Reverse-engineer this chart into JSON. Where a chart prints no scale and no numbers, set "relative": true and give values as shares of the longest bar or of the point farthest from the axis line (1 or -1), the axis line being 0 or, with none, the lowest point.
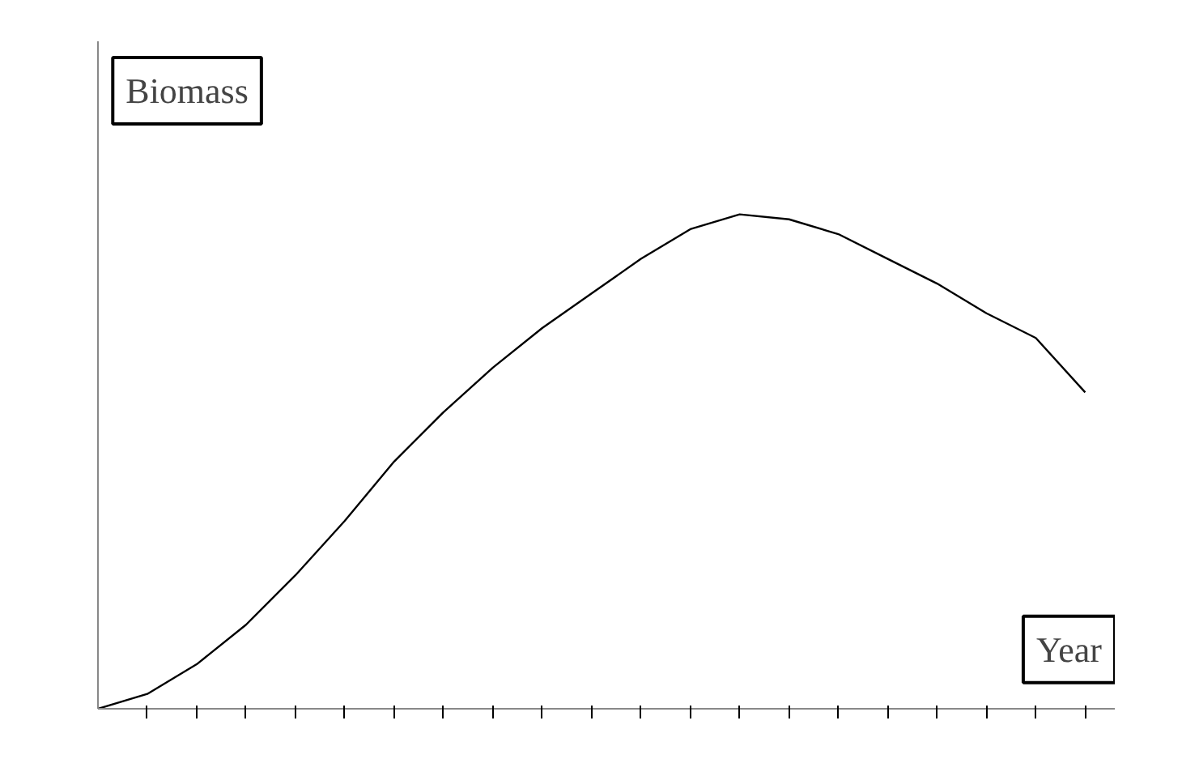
{
  "chart_data": {
    "type": "line",
    "relative": true,
    "xlabel": "Year",
    "ylabel": "Biomass",
    "categories": [
      null,
      null,
      null,
      null,
      null,
      null,
      null,
      null,
      null,
      null,
      null,
      null,
      null,
      null,
      null,
      null,
      null,
      null,
      null,
      null,
      null
    ],
    "series": [
      {
        "color": "#000000",
        "values": [
          0,
          0.03,
          0.09,
          0.17,
          0.27,
          0.38,
          0.5,
          0.6,
          0.69,
          0.77,
          0.84,
          0.91,
          0.97,
          1.0,
          0.99,
          0.96,
          0.91,
          0.86,
          0.8,
          0.75,
          0.64
        ]
      }
    ],
    "grid": false
  }
}
